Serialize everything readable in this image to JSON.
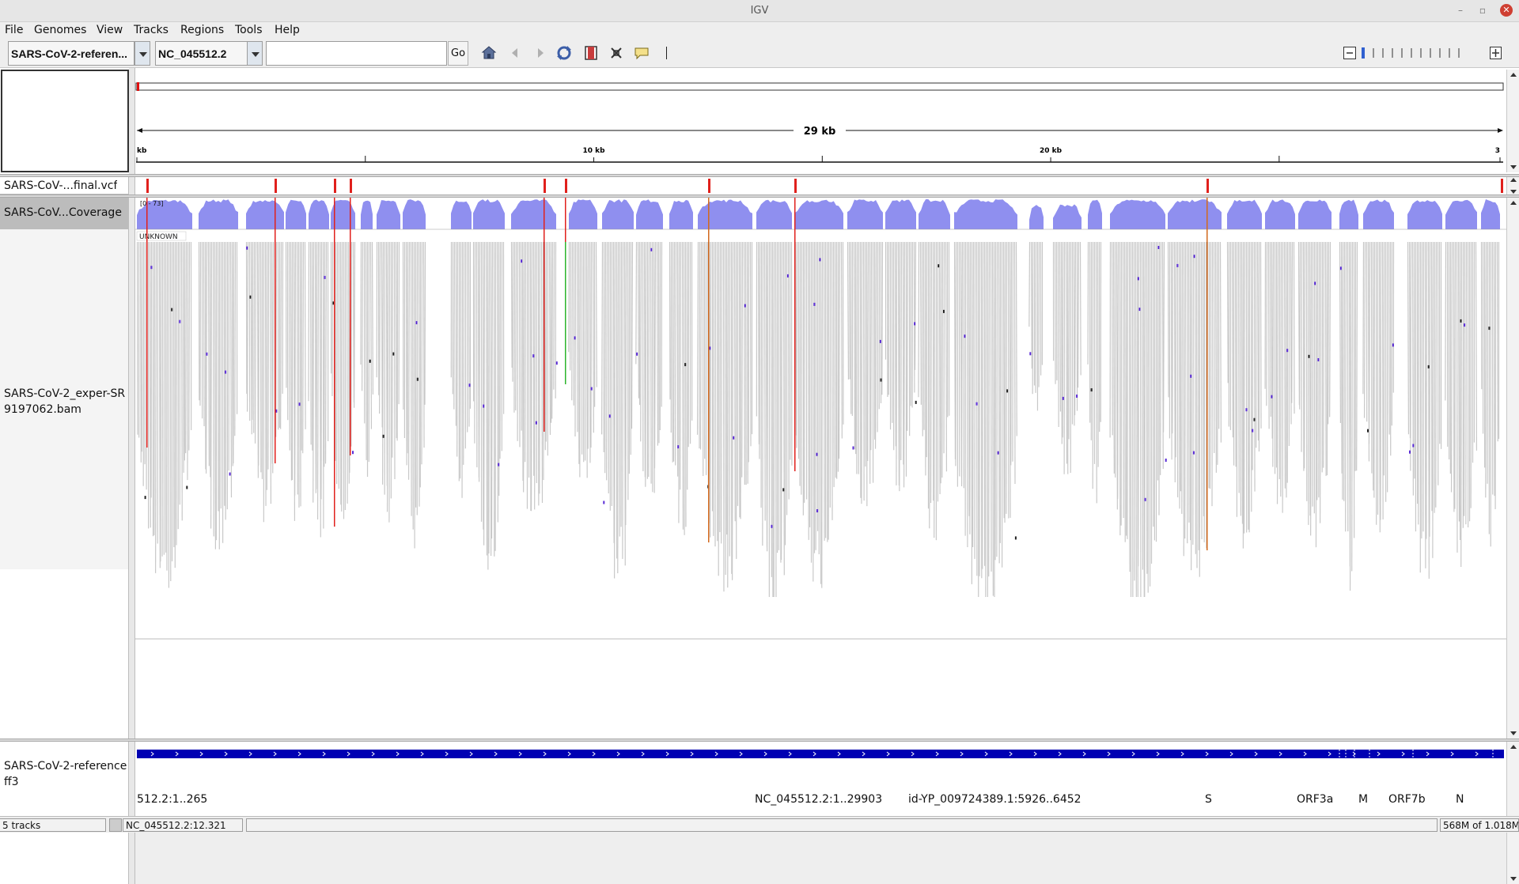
{
  "window": {
    "title": "IGV"
  },
  "menu": {
    "items": [
      "File",
      "Genomes",
      "View",
      "Tracks",
      "Regions",
      "Tools",
      "Help"
    ]
  },
  "toolbar": {
    "genome_value": "SARS-CoV-2-referen...",
    "chromosome_value": "NC_045512.2",
    "locus_value": "",
    "go_label": "Go",
    "icons": [
      "home-icon",
      "back-icon",
      "forward-icon",
      "refresh-icon",
      "roi-icon",
      "resize-icon",
      "popup-info-icon"
    ]
  },
  "ruler": {
    "span_label": "29 kb",
    "ticks": [
      {
        "label": "kb",
        "kb": 0
      },
      {
        "label": "10 kb",
        "kb": 10
      },
      {
        "label": "20 kb",
        "kb": 20
      },
      {
        "label": "3",
        "kb": 30
      }
    ]
  },
  "tracks": {
    "vcf": {
      "name": "SARS-CoV-...final.vcf",
      "variant_color": "#e0201c"
    },
    "coverage": {
      "name": "SARS-CoV...Coverage",
      "range_label": "[0 - 73]",
      "color": "#8f8fef"
    },
    "bam": {
      "name_line1": "SARS-CoV-2_exper-SR",
      "name_line2": "9197062.bam",
      "group_label": "UNKNOWN",
      "read_color": "#c8c8c8"
    },
    "annotation": {
      "name_line1": "SARS-CoV-2-reference",
      "name_line2": "ff3",
      "color": "#0000b3",
      "feature_labels": [
        "512.2:1..265",
        "NC_045512.2:1..29903",
        "id-YP_009724389.1:5926..6452",
        "S",
        "ORF3a",
        "M",
        "ORF7b",
        "N"
      ]
    }
  },
  "status": {
    "tracks_count": "5 tracks",
    "position": "NC_045512.2:12.321",
    "memory": "568M of 1.018M"
  }
}
